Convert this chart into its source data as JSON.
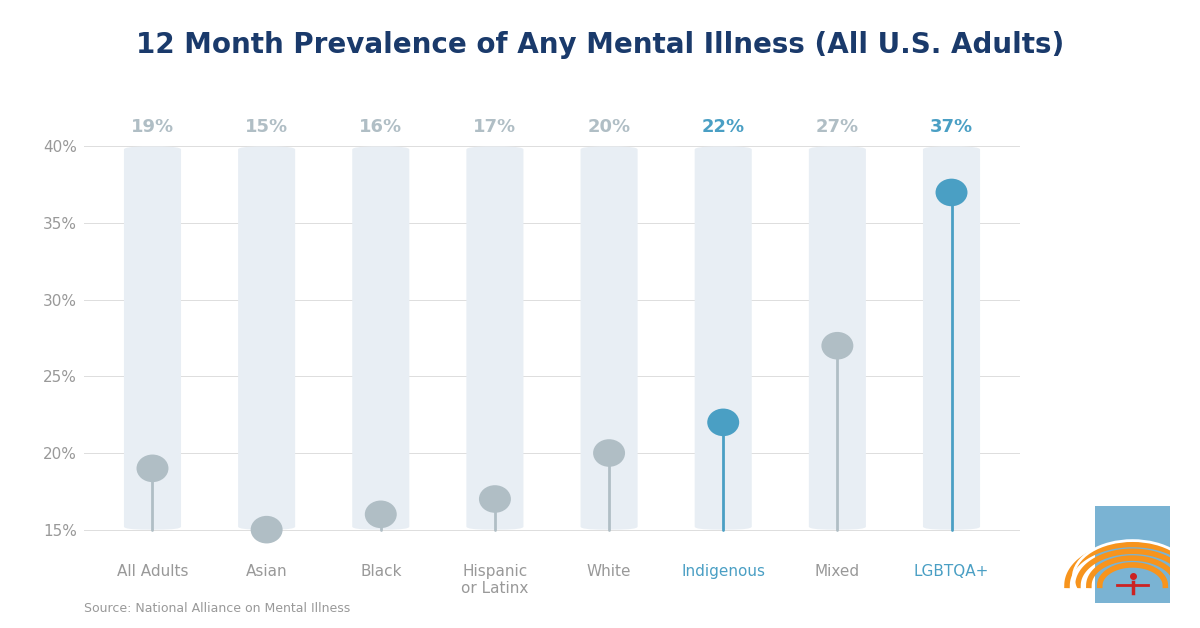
{
  "title": "12 Month Prevalence of Any Mental Illness (All U.S. Adults)",
  "categories": [
    "All Adults",
    "Asian",
    "Black",
    "Hispanic\nor Latinx",
    "White",
    "Indigenous",
    "Mixed",
    "LGBTQA+"
  ],
  "values": [
    19,
    15,
    16,
    17,
    20,
    22,
    27,
    37
  ],
  "bar_max": 40,
  "bar_min": 15,
  "bar_color": "#e8eef4",
  "dot_colors": [
    "#b0bec5",
    "#b0bec5",
    "#b0bec5",
    "#b0bec5",
    "#b0bec5",
    "#4a9fc4",
    "#b0bec5",
    "#4a9fc4"
  ],
  "line_colors": [
    "#b0bec5",
    "#b0bec5",
    "#b0bec5",
    "#b0bec5",
    "#b0bec5",
    "#4a9fc4",
    "#b0bec5",
    "#4a9fc4"
  ],
  "label_colors": [
    "#b0bec5",
    "#b0bec5",
    "#b0bec5",
    "#b0bec5",
    "#b0bec5",
    "#4a9fc4",
    "#b0bec5",
    "#4a9fc4"
  ],
  "xticklabel_colors": [
    "#999999",
    "#999999",
    "#999999",
    "#999999",
    "#999999",
    "#4a9fc4",
    "#999999",
    "#4a9fc4"
  ],
  "value_labels": [
    "19%",
    "15%",
    "16%",
    "17%",
    "20%",
    "22%",
    "27%",
    "37%"
  ],
  "ylim": [
    13.5,
    43
  ],
  "yticks": [
    15,
    20,
    25,
    30,
    35,
    40
  ],
  "ytick_labels": [
    "15%",
    "20%",
    "25%",
    "30%",
    "35%",
    "40%"
  ],
  "background_color": "#ffffff",
  "source_text": "Source: National Alliance on Mental Illness",
  "title_color": "#1a3a6b",
  "title_fontsize": 20,
  "bar_width": 0.5,
  "line_width": 2.0
}
